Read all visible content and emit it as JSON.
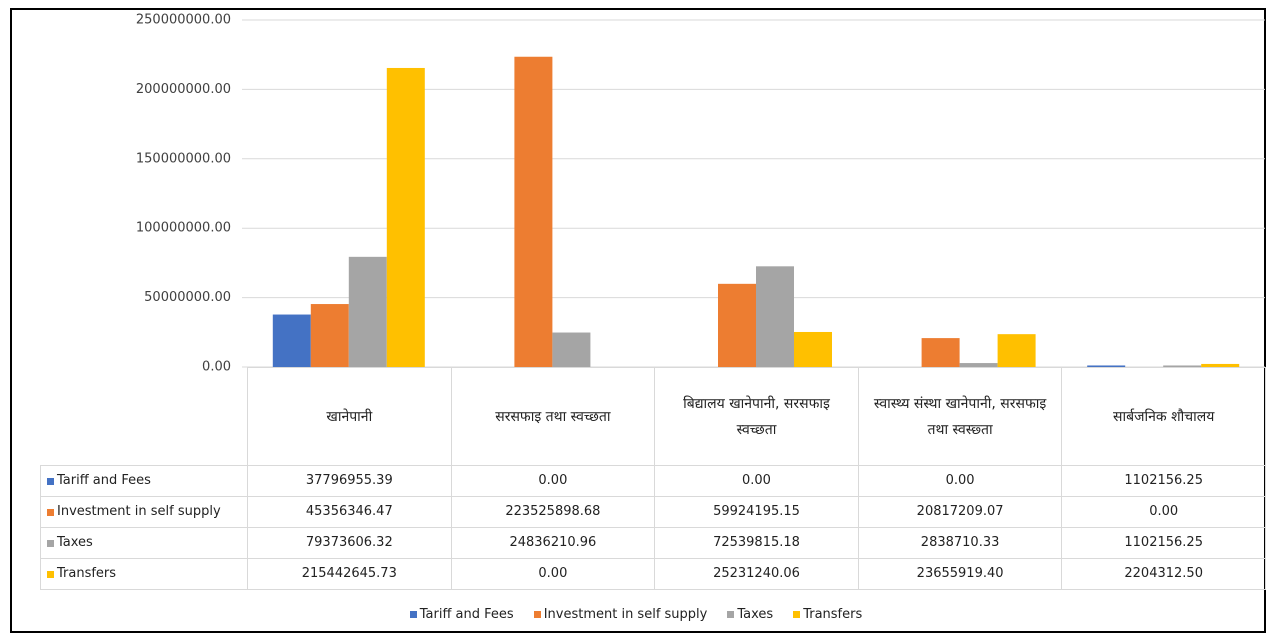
{
  "chart_data": {
    "type": "bar",
    "categories": [
      "खानेपानी",
      "सरसफाइ तथा स्वच्छता",
      "बिद्यालय खानेपानी, सरसफाइ स्वच्छता",
      "स्वास्थ्य संस्था खानेपानी, सरसफाइ तथा स्वस्छ्ता",
      "सार्बजनिक शौचालय"
    ],
    "series": [
      {
        "name": "Tariff and Fees",
        "color": "#4472c4",
        "values": [
          37796955.39,
          0,
          0,
          0,
          1102156.25
        ],
        "value_labels": [
          "37796955.39",
          "0.00",
          "0.00",
          "0.00",
          "1102156.25"
        ]
      },
      {
        "name": "Investment in self supply",
        "color": "#ed7d31",
        "values": [
          45356346.47,
          223525898.68,
          59924195.15,
          20817209.07,
          0
        ],
        "value_labels": [
          "45356346.47",
          "223525898.68",
          "59924195.15",
          "20817209.07",
          "0.00"
        ]
      },
      {
        "name": "Taxes",
        "color": "#a5a5a5",
        "values": [
          79373606.32,
          24836210.96,
          72539815.18,
          2838710.33,
          1102156.25
        ],
        "value_labels": [
          "79373606.32",
          "24836210.96",
          "72539815.18",
          "2838710.33",
          "1102156.25"
        ]
      },
      {
        "name": "Transfers",
        "color": "#ffc000",
        "values": [
          215442645.73,
          0,
          25231240.06,
          23655919.4,
          2204312.5
        ],
        "value_labels": [
          "215442645.73",
          "0.00",
          "25231240.06",
          "23655919.40",
          "2204312.50"
        ]
      }
    ],
    "ylim": [
      0,
      250000000
    ],
    "yticks": [
      {
        "value": 0,
        "label": "0.00"
      },
      {
        "value": 50000000,
        "label": "50000000.00"
      },
      {
        "value": 100000000,
        "label": "100000000.00"
      },
      {
        "value": 150000000,
        "label": "150000000.00"
      },
      {
        "value": 200000000,
        "label": "200000000.00"
      },
      {
        "value": 250000000,
        "label": "250000000.00"
      }
    ],
    "grid": true,
    "legend": "bottom"
  }
}
